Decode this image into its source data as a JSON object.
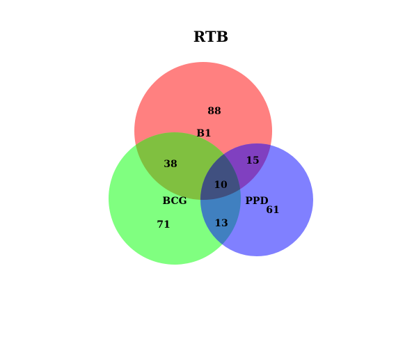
{
  "title": "RTB",
  "sets": [
    {
      "name": "B1",
      "color": "#ff8080"
    },
    {
      "name": "BCG",
      "color": "#80ff80"
    },
    {
      "name": "PPD",
      "color": "#8080ff"
    }
  ],
  "regions": {
    "b1_only": "88",
    "b1_bcg": "38",
    "b1_ppd": "15",
    "all_three": "10",
    "bcg_ppd": "13",
    "bcg_only": "71",
    "ppd_only": "61"
  },
  "overlap_colors": {
    "b1_bcg": "#80c040",
    "b1_ppd": "#8040c0",
    "bcg_ppd": "#4080c0",
    "all_three": "#405080"
  }
}
